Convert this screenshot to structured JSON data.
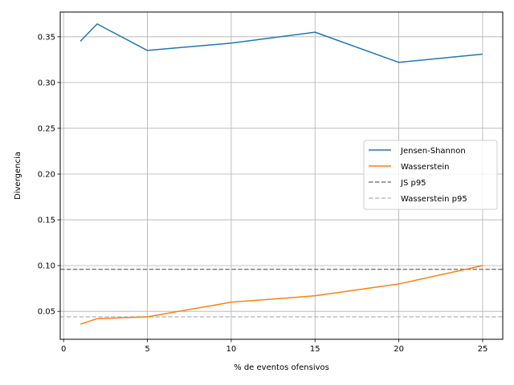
{
  "chart_data": {
    "type": "line",
    "title": "",
    "xlabel": "% de eventos ofensivos",
    "ylabel": "Divergencia",
    "xlim": [
      -0.2,
      26.2
    ],
    "ylim": [
      0.0195,
      0.377
    ],
    "xticks": [
      0,
      5,
      10,
      15,
      20,
      25
    ],
    "yticks": [
      0.05,
      0.1,
      0.15,
      0.2,
      0.25,
      0.3,
      0.35
    ],
    "grid": true,
    "legend": "center-right",
    "series": [
      {
        "name": "Jensen-Shannon",
        "color": "#1f77b4",
        "style": "solid",
        "x": [
          1,
          2,
          5,
          10,
          15,
          20,
          25
        ],
        "y": [
          0.345,
          0.364,
          0.335,
          0.343,
          0.355,
          0.322,
          0.331
        ]
      },
      {
        "name": "Wasserstein",
        "color": "#ff7f0e",
        "style": "solid",
        "x": [
          1,
          2,
          5,
          10,
          15,
          20,
          25
        ],
        "y": [
          0.036,
          0.042,
          0.044,
          0.06,
          0.067,
          0.08,
          0.1
        ]
      },
      {
        "name": "JS p95",
        "color": "#808080",
        "style": "dashed",
        "hline": 0.096
      },
      {
        "name": "Wasserstein p95",
        "color": "#c0c0c0",
        "style": "dashed",
        "hline": 0.044
      }
    ]
  }
}
